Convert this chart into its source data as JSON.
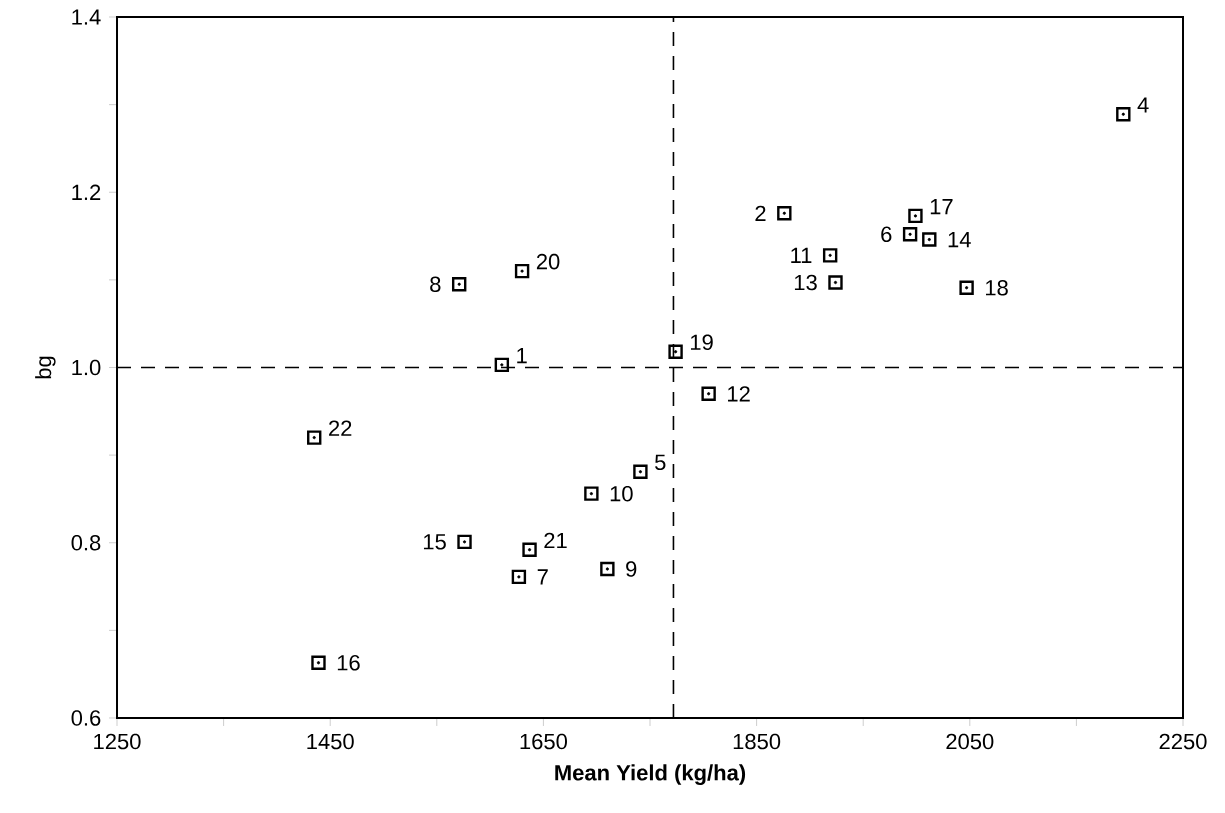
{
  "chart_data": {
    "type": "scatter",
    "xlabel": "Mean Yield (kg/ha)",
    "ylabel": "bg",
    "x": [
      1611,
      1876,
      2194,
      1741,
      1994,
      1627,
      1571,
      1710,
      1695,
      1919,
      1805,
      1924,
      2012,
      1576,
      1439,
      1999,
      2047,
      1774,
      1630,
      1637,
      1435
    ],
    "series": [
      {
        "color": "#000000",
        "values": [
          1.003,
          1.176,
          1.289,
          0.881,
          1.152,
          0.761,
          1.095,
          0.77,
          0.856,
          1.128,
          0.97,
          1.097,
          1.146,
          0.801,
          0.663,
          1.173,
          1.091,
          1.018,
          1.11,
          0.792,
          0.92
        ]
      }
    ],
    "marker": "square",
    "grid": false,
    "xlim": [
      1250,
      2250
    ],
    "ylim": [
      0.6,
      1.4
    ],
    "xticks": [
      1250,
      {
        "value": 1350,
        "label": null
      },
      1450,
      {
        "value": 1550,
        "label": null
      },
      1650,
      {
        "value": 1750,
        "label": null
      },
      1850,
      {
        "value": 1950,
        "label": null
      },
      2050,
      {
        "value": 2150,
        "label": null
      },
      2250
    ],
    "yticks": [
      0.6,
      {
        "value": 0.7,
        "label": null
      },
      0.8,
      {
        "value": 0.9,
        "label": null
      },
      {
        "value": 1.0,
        "label": "1.0"
      },
      {
        "value": 1.1,
        "label": null
      },
      1.2,
      {
        "value": 1.3,
        "label": null
      },
      1.4
    ],
    "ref_lines": [
      {
        "axis": "x",
        "value": 1772,
        "line_style": "dashed"
      },
      {
        "axis": "y",
        "value": 1.0,
        "line_style": "dashed"
      }
    ],
    "annotations": [
      {
        "text": "1",
        "x": 1611,
        "y": 1.003
      },
      {
        "text": "2",
        "x": 1876,
        "y": 1.176
      },
      {
        "text": "4",
        "x": 2194,
        "y": 1.289
      },
      {
        "text": "5",
        "x": 1741,
        "y": 0.881
      },
      {
        "text": "6",
        "x": 1994,
        "y": 1.152
      },
      {
        "text": "7",
        "x": 1627,
        "y": 0.761
      },
      {
        "text": "8",
        "x": 1571,
        "y": 1.095
      },
      {
        "text": "9",
        "x": 1710,
        "y": 0.77
      },
      {
        "text": "10",
        "x": 1695,
        "y": 0.856
      },
      {
        "text": "11",
        "x": 1919,
        "y": 1.128
      },
      {
        "text": "12",
        "x": 1805,
        "y": 0.97
      },
      {
        "text": "13",
        "x": 1924,
        "y": 1.097
      },
      {
        "text": "14",
        "x": 2012,
        "y": 1.146
      },
      {
        "text": "15",
        "x": 1576,
        "y": 0.801
      },
      {
        "text": "16",
        "x": 1439,
        "y": 0.663
      },
      {
        "text": "17",
        "x": 1999,
        "y": 1.173
      },
      {
        "text": "18",
        "x": 2047,
        "y": 1.091
      },
      {
        "text": "19",
        "x": 1774,
        "y": 1.018
      },
      {
        "text": "20",
        "x": 1630,
        "y": 1.11
      },
      {
        "text": "21",
        "x": 1637,
        "y": 0.792
      },
      {
        "text": "22",
        "x": 1435,
        "y": 0.92
      }
    ]
  }
}
